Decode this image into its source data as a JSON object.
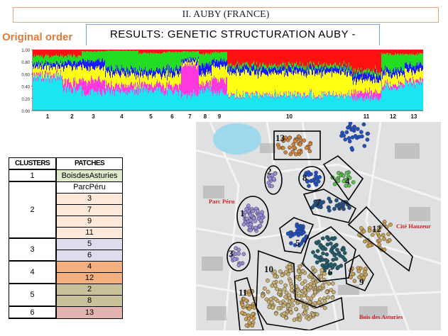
{
  "slide": {
    "frame_title": "II. AUBY (FRANCE)",
    "subtitle": "Original order",
    "results_title": "RESULTS: GENETIC STRUCTURATION AUBY -"
  },
  "chart_data": {
    "type": "bar",
    "title": "",
    "ylim": [
      0,
      1
    ],
    "yticks": [
      "0.00",
      "0.20",
      "0.40",
      "0.60",
      "0.80",
      "1.00"
    ],
    "colors": {
      "cyan": "#19e6f0",
      "magenta": "#ff38e0",
      "yellow": "#ffff14",
      "blue": "#1a1aff",
      "green": "#22dd22",
      "red": "#ff1010"
    },
    "segments": [
      {
        "label": "1",
        "proportions": [
          0.55,
          0.05,
          0.12,
          0.06,
          0.12,
          0.1
        ]
      },
      {
        "label": "2",
        "proportions": [
          0.35,
          0.12,
          0.25,
          0.08,
          0.1,
          0.1
        ]
      },
      {
        "label": "3",
        "proportions": [
          0.3,
          0.2,
          0.2,
          0.12,
          0.15,
          0.03
        ]
      },
      {
        "label": "4",
        "proportions": [
          0.32,
          0.1,
          0.18,
          0.08,
          0.3,
          0.02
        ]
      },
      {
        "label": "5",
        "proportions": [
          0.35,
          0.1,
          0.15,
          0.08,
          0.26,
          0.06
        ]
      },
      {
        "label": "6",
        "proportions": [
          0.3,
          0.1,
          0.18,
          0.1,
          0.28,
          0.04
        ]
      },
      {
        "label": "7",
        "proportions": [
          0.25,
          0.5,
          0.05,
          0.05,
          0.12,
          0.03
        ]
      },
      {
        "label": "8",
        "proportions": [
          0.35,
          0.1,
          0.15,
          0.15,
          0.18,
          0.07
        ]
      },
      {
        "label": "9",
        "proportions": [
          0.3,
          0.22,
          0.2,
          0.1,
          0.14,
          0.04
        ]
      },
      {
        "label": "10",
        "proportions": [
          0.25,
          0.02,
          0.35,
          0.08,
          0.05,
          0.25
        ]
      },
      {
        "label": "11",
        "proportions": [
          0.2,
          0.1,
          0.2,
          0.1,
          0.05,
          0.35
        ]
      },
      {
        "label": "12",
        "proportions": [
          0.4,
          0.05,
          0.15,
          0.08,
          0.25,
          0.07
        ]
      },
      {
        "label": "13",
        "proportions": [
          0.45,
          0.05,
          0.15,
          0.1,
          0.18,
          0.07
        ]
      }
    ]
  },
  "clusters_table": {
    "headers": [
      "CLUSTERS",
      "PATCHES"
    ],
    "rows": [
      {
        "cluster": "1",
        "patches": [
          "BoisdesAsturies"
        ],
        "color": "#e0ebcc"
      },
      {
        "cluster": "2",
        "patches": [
          "ParcPéru",
          "3",
          "7",
          "9",
          "11"
        ],
        "color": "#fde9d9"
      },
      {
        "cluster": "3",
        "patches": [
          "5",
          "6"
        ],
        "color": "#dcdcec"
      },
      {
        "cluster": "4",
        "patches": [
          "4",
          "12"
        ],
        "color": "#f2b07e"
      },
      {
        "cluster": "5",
        "patches": [
          "2",
          "8"
        ],
        "color": "#c9c19a"
      },
      {
        "cluster": "6",
        "patches": [
          "13"
        ],
        "color": "#e3b3b0"
      }
    ]
  },
  "map": {
    "places": [
      "Parc Péru",
      "Cité Hauzeur",
      "Bois des Asturies"
    ],
    "sites": [
      "1",
      "2",
      "3",
      "4",
      "5",
      "6",
      "7",
      "8",
      "9",
      "10",
      "11",
      "12",
      "13"
    ]
  }
}
